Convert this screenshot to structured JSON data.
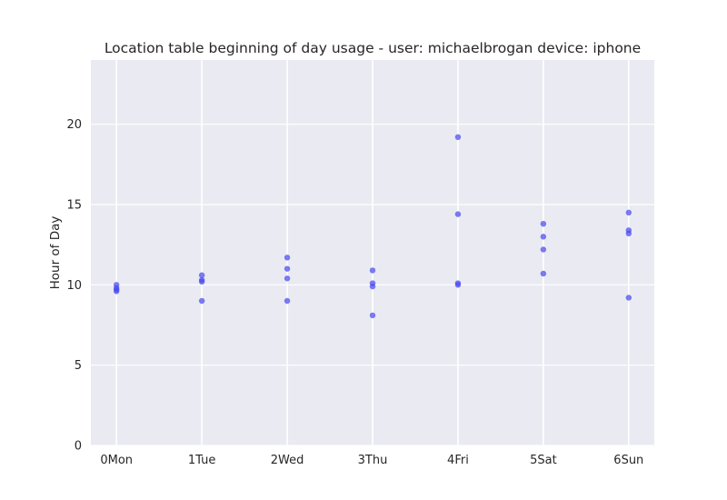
{
  "chart_data": {
    "type": "scatter",
    "title": "Location table beginning of day usage -  user: michaelbrogan device: iphone",
    "xlabel": "",
    "ylabel": "Hour of Day",
    "categories": [
      "0Mon",
      "1Tue",
      "2Wed",
      "3Thu",
      "4Fri",
      "5Sat",
      "6Sun"
    ],
    "xlim": [
      -0.3,
      6.3
    ],
    "ylim": [
      0,
      24
    ],
    "yticks": [
      0,
      5,
      10,
      15,
      20
    ],
    "grid": true,
    "colors": {
      "background": "#eaeaf2",
      "grid": "#ffffff",
      "point": "#4a4af0"
    },
    "points": [
      {
        "x": 0,
        "y": 10.0
      },
      {
        "x": 0,
        "y": 9.8
      },
      {
        "x": 0,
        "y": 9.7
      },
      {
        "x": 0,
        "y": 9.6
      },
      {
        "x": 1,
        "y": 10.6
      },
      {
        "x": 1,
        "y": 10.3
      },
      {
        "x": 1,
        "y": 10.2
      },
      {
        "x": 1,
        "y": 9.0
      },
      {
        "x": 2,
        "y": 11.7
      },
      {
        "x": 2,
        "y": 11.0
      },
      {
        "x": 2,
        "y": 10.4
      },
      {
        "x": 2,
        "y": 9.0
      },
      {
        "x": 3,
        "y": 10.9
      },
      {
        "x": 3,
        "y": 10.1
      },
      {
        "x": 3,
        "y": 9.9
      },
      {
        "x": 3,
        "y": 8.1
      },
      {
        "x": 4,
        "y": 19.2
      },
      {
        "x": 4,
        "y": 14.4
      },
      {
        "x": 4,
        "y": 10.1
      },
      {
        "x": 4,
        "y": 10.0
      },
      {
        "x": 5,
        "y": 13.8
      },
      {
        "x": 5,
        "y": 13.0
      },
      {
        "x": 5,
        "y": 12.2
      },
      {
        "x": 5,
        "y": 10.7
      },
      {
        "x": 6,
        "y": 14.5
      },
      {
        "x": 6,
        "y": 13.4
      },
      {
        "x": 6,
        "y": 13.2
      },
      {
        "x": 6,
        "y": 9.2
      }
    ]
  }
}
